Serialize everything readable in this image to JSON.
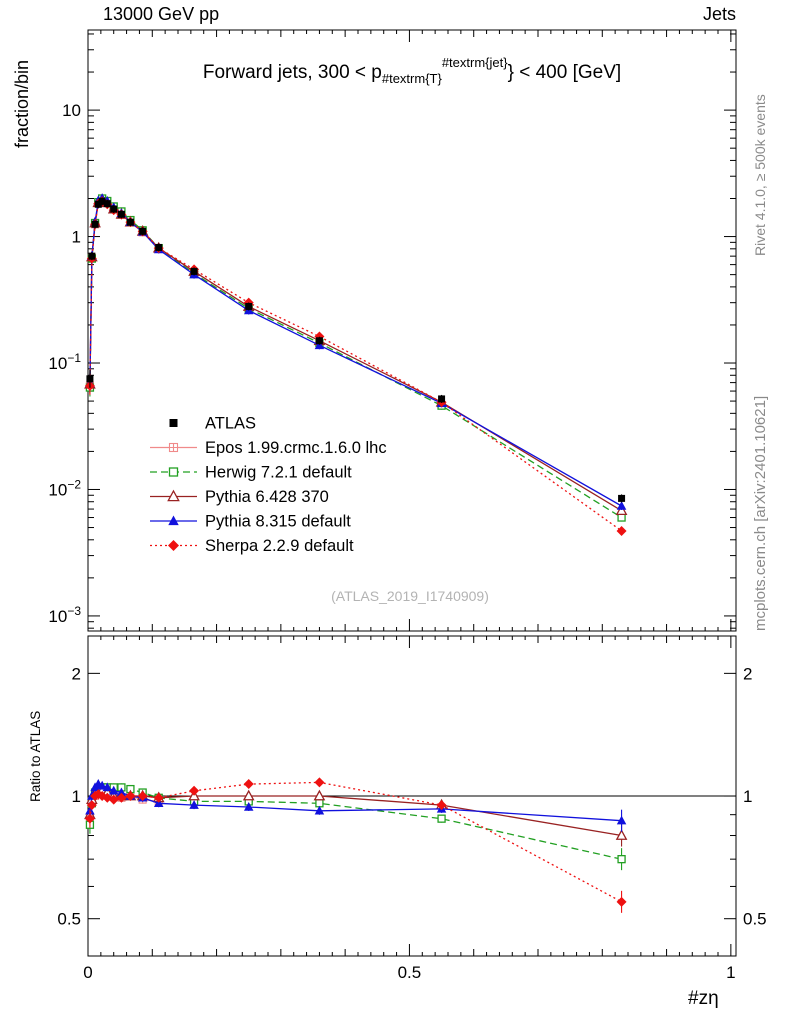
{
  "header": {
    "beam_label": "13000 GeV pp",
    "process_label": "Jets"
  },
  "side_labels": {
    "y_axis_title": "fraction/bin",
    "ratio_axis_title": "Ratio to ATLAS",
    "rivet_note": "Rivet 4.1.0, ≥ 500k events",
    "mcplots_note": "mcplots.cern.ch [arXiv:2401.10621]"
  },
  "watermark": "(ATLAS_2019_I1740909)",
  "x_axis_title": "#zη",
  "chart_data": {
    "type": "line",
    "title_parts": {
      "prefix": "Forward jets, 300 < p",
      "sub": "#textrm{T}",
      "sup": "#textrm{jet}",
      "suffix": "} < 400 [GeV]"
    },
    "x_axis": {
      "min": 0,
      "max": 1.008,
      "major_ticks": [
        0,
        0.5,
        1
      ],
      "tick_labels": [
        "0",
        "0.5",
        "1"
      ]
    },
    "y_axis": {
      "scale": "log",
      "min": 0.00076,
      "max": 43,
      "label_values": [
        10,
        1,
        0.1,
        0.01,
        0.001
      ]
    },
    "ratio_axis": {
      "scale": "log",
      "min": 0.405,
      "max": 2.47,
      "label_values": [
        2,
        1,
        0.5
      ],
      "minor_ticks": [
        0.6,
        0.7,
        0.8,
        0.9
      ]
    },
    "x": [
      0.003,
      0.006,
      0.011,
      0.016,
      0.022,
      0.03,
      0.04,
      0.052,
      0.066,
      0.085,
      0.11,
      0.165,
      0.25,
      0.36,
      0.55,
      0.83
    ],
    "series": [
      {
        "name": "ATLAS",
        "color": "#000000",
        "marker": "square-filled",
        "line": "none",
        "values": [
          0.075,
          0.7,
          1.25,
          1.8,
          1.9,
          1.82,
          1.65,
          1.5,
          1.3,
          1.1,
          0.82,
          0.53,
          0.28,
          0.15,
          0.052,
          0.0085
        ]
      },
      {
        "name": "Epos 1.99.crmc.1.6.0 lhc",
        "color": "#f08a8a",
        "marker": "square-plus-open",
        "line": "solid",
        "values": [
          0.066,
          0.68,
          1.25,
          1.84,
          1.96,
          1.84,
          1.65,
          1.49,
          1.3,
          1.08,
          0.8,
          null,
          null,
          null,
          null,
          null
        ],
        "ratio": [
          0.88,
          0.97,
          1.0,
          1.02,
          1.03,
          1.01,
          1.0,
          0.99,
          1.0,
          0.98,
          0.97,
          null,
          null,
          null,
          null,
          null
        ]
      },
      {
        "name": "Herwig 7.2.1 default",
        "color": "#22a022",
        "marker": "square-open",
        "line": "dashed",
        "values": [
          0.064,
          0.67,
          1.28,
          1.87,
          2.0,
          1.91,
          1.73,
          1.58,
          1.35,
          1.12,
          0.81,
          0.51,
          0.27,
          0.144,
          0.046,
          0.006
        ],
        "ratio": [
          0.85,
          0.96,
          1.02,
          1.04,
          1.05,
          1.05,
          1.05,
          1.05,
          1.04,
          1.02,
          0.99,
          0.97,
          0.97,
          0.96,
          0.88,
          0.7
        ]
      },
      {
        "name": "Pythia 6.428 370",
        "color": "#992222",
        "marker": "triangle-open",
        "line": "solid",
        "values": [
          0.068,
          0.69,
          1.28,
          1.85,
          1.96,
          1.86,
          1.65,
          1.5,
          1.3,
          1.1,
          0.81,
          0.53,
          0.28,
          0.15,
          0.049,
          0.0068
        ],
        "ratio": [
          0.9,
          0.98,
          1.02,
          1.03,
          1.03,
          1.02,
          1.0,
          1.0,
          1.0,
          1.0,
          0.99,
          1.0,
          1.0,
          1.0,
          0.95,
          0.8
        ]
      },
      {
        "name": "Pythia 8.315 default",
        "color": "#1111dd",
        "marker": "triangle-filled",
        "line": "solid",
        "values": [
          0.069,
          0.7,
          1.31,
          1.93,
          2.01,
          1.91,
          1.7,
          1.53,
          1.3,
          1.09,
          0.79,
          0.5,
          0.26,
          0.138,
          0.048,
          0.0074
        ],
        "ratio": [
          0.92,
          1.0,
          1.05,
          1.07,
          1.06,
          1.05,
          1.03,
          1.02,
          1.0,
          0.99,
          0.96,
          0.95,
          0.94,
          0.92,
          0.93,
          0.87
        ]
      },
      {
        "name": "Sherpa 2.2.9 default",
        "color": "#ee1111",
        "marker": "diamond-filled",
        "line": "dotted",
        "values": [
          0.066,
          0.67,
          1.25,
          1.82,
          1.9,
          1.8,
          1.62,
          1.49,
          1.3,
          1.1,
          0.81,
          0.55,
          0.3,
          0.162,
          0.049,
          0.0047
        ],
        "ratio": [
          0.88,
          0.95,
          1.0,
          1.01,
          1.0,
          0.99,
          0.98,
          0.99,
          1.0,
          1.0,
          0.99,
          1.03,
          1.07,
          1.08,
          0.95,
          0.55
        ]
      }
    ]
  }
}
